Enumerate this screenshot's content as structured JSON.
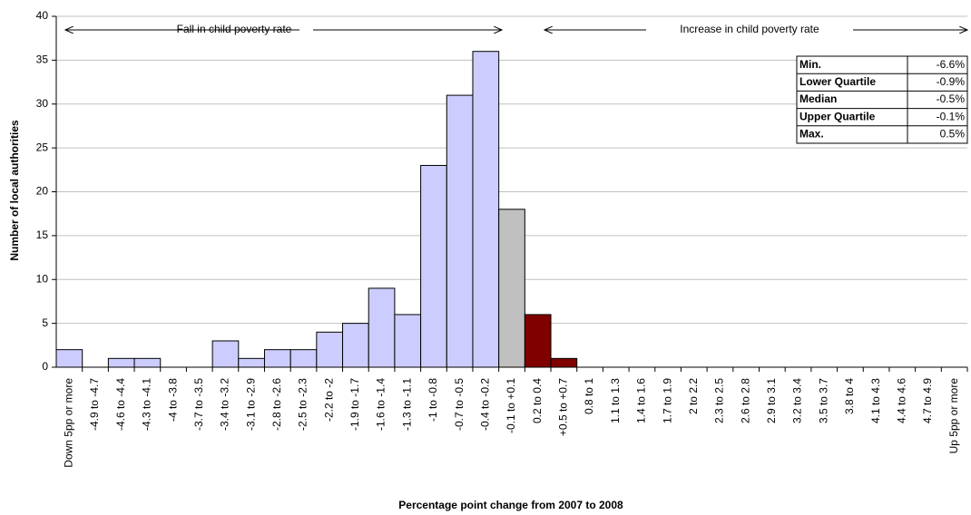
{
  "chart_data": {
    "type": "bar",
    "x_label": "Percentage point change from 2007 to 2008",
    "y_label": "Number of local authorities",
    "categories": [
      "Down 5pp or more",
      "-4.9 to -4.7",
      "-4.6 to -4.4",
      "-4.3 to -4.1",
      "-4 to -3.8",
      "-3.7 to -3.5",
      "-3.4 to -3.2",
      "-3.1 to -2.9",
      "-2.8 to -2.6",
      "-2.5 to -2.3",
      "-2.2 to -2",
      "-1.9 to -1.7",
      "-1.6 to -1.4",
      "-1.3 to -1.1",
      "-1 to -0.8",
      "-0.7 to -0.5",
      "-0.4 to -0.2",
      "-0.1 to +0.1",
      "0.2 to 0.4",
      "+0.5 to +0.7",
      "0.8 to 1",
      "1.1 to 1.3",
      "1.4 to 1.6",
      "1.7 to 1.9",
      "2 to 2.2",
      "2.3 to 2.5",
      "2.6 to 2.8",
      "2.9 to 3.1",
      "3.2 to 3.4",
      "3.5 to 3.7",
      "3.8 to 4",
      "4.1 to 4.3",
      "4.4 to 4.6",
      "4.7 to 4.9",
      "Up 5pp or more"
    ],
    "values": [
      2,
      0,
      1,
      1,
      0,
      0,
      3,
      1,
      2,
      2,
      4,
      5,
      9,
      6,
      23,
      31,
      36,
      18,
      6,
      1,
      0,
      0,
      0,
      0,
      0,
      0,
      0,
      0,
      0,
      0,
      0,
      0,
      0,
      0,
      0
    ],
    "colors": [
      "#ccccff",
      "#ccccff",
      "#ccccff",
      "#ccccff",
      "#ccccff",
      "#ccccff",
      "#ccccff",
      "#ccccff",
      "#ccccff",
      "#ccccff",
      "#ccccff",
      "#ccccff",
      "#ccccff",
      "#ccccff",
      "#ccccff",
      "#ccccff",
      "#ccccff",
      "#c0c0c0",
      "#800000",
      "#800000",
      "#ccccff",
      "#ccccff",
      "#ccccff",
      "#ccccff",
      "#ccccff",
      "#ccccff",
      "#ccccff",
      "#ccccff",
      "#ccccff",
      "#ccccff",
      "#ccccff",
      "#ccccff",
      "#ccccff",
      "#ccccff",
      "#ccccff"
    ],
    "ylim": [
      0,
      40
    ],
    "yticks": [
      0,
      5,
      10,
      15,
      20,
      25,
      30,
      35,
      40
    ],
    "grid": true,
    "annotations": [
      "Fall in child poverty rate",
      "Increase in child poverty rate"
    ],
    "stats_table": [
      [
        "Min.",
        "-6.6%"
      ],
      [
        "Lower Quartile",
        "-0.9%"
      ],
      [
        "Median",
        "-0.5%"
      ],
      [
        "Upper Quartile",
        "-0.1%"
      ],
      [
        "Max.",
        "0.5%"
      ]
    ]
  }
}
